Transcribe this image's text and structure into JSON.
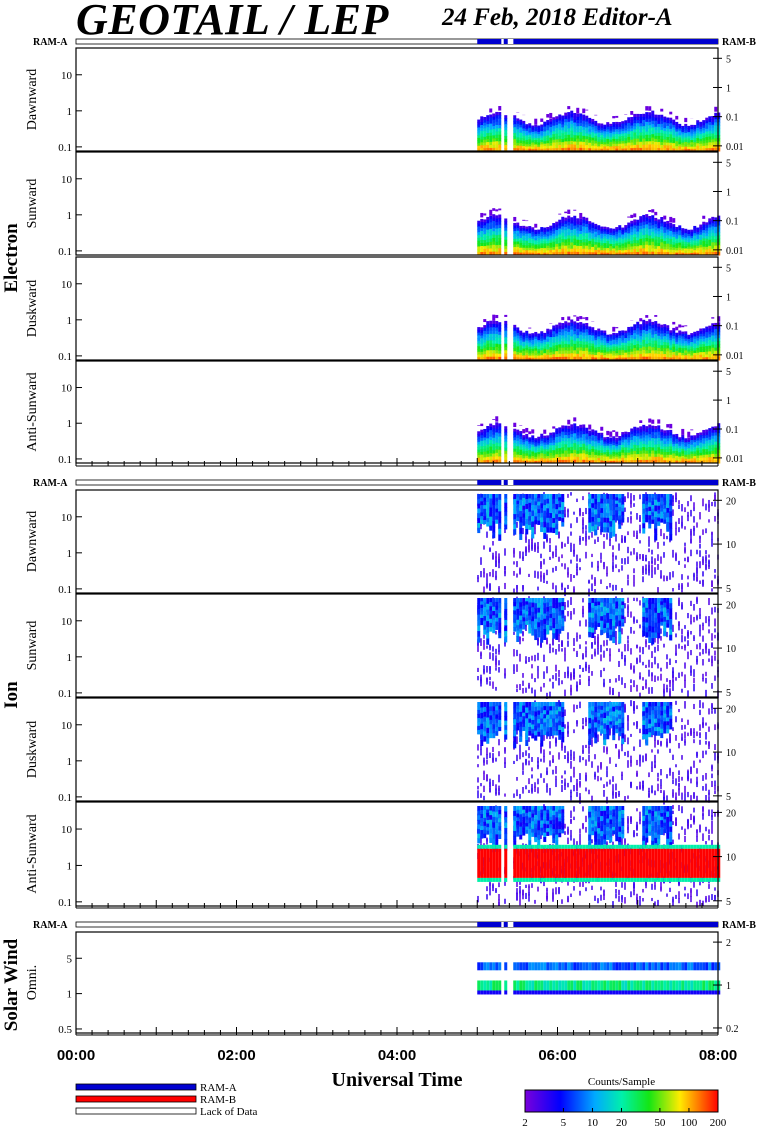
{
  "header": {
    "title": "GEOTAIL / LEP",
    "date_editor": "24 Feb, 2018   Editor-A"
  },
  "colors": {
    "ram_a": "#0000d0",
    "ram_b": "#ff0000",
    "panel_border": "#000000"
  },
  "chart_data": {
    "type": "heatmap",
    "xlabel": "Universal Time",
    "x_ticks": [
      "00:00",
      "02:00",
      "04:00",
      "06:00",
      "08:00"
    ],
    "x_range_hours": [
      0,
      8
    ],
    "data_start_hour": 5.0,
    "data_gap_hours": [
      [
        5.3,
        5.33
      ],
      [
        5.38,
        5.45
      ]
    ],
    "ram_a_bar_start_hour": 5.0,
    "mode_labels": {
      "ram_a": "RAM-A",
      "ram_b": "RAM-B"
    },
    "groups": [
      {
        "name": "Electron",
        "panels": [
          {
            "label": "Dawnward",
            "left_ticks": [
              "10",
              "1",
              "0.1"
            ],
            "right_ticks": [
              "5",
              "1",
              "0.1",
              "0.01"
            ],
            "band": "electron"
          },
          {
            "label": "Sunward",
            "left_ticks": [
              "10",
              "1",
              "0.1"
            ],
            "right_ticks": [
              "5",
              "1",
              "0.1",
              "0.01"
            ],
            "band": "electron"
          },
          {
            "label": "Duskward",
            "left_ticks": [
              "10",
              "1",
              "0.1"
            ],
            "right_ticks": [
              "5",
              "1",
              "0.1",
              "0.01"
            ],
            "band": "electron"
          },
          {
            "label": "Anti-Sunward",
            "left_ticks": [
              "10",
              "1",
              "0.1"
            ],
            "right_ticks": [
              "5",
              "1",
              "0.1",
              "0.01"
            ],
            "band": "electron"
          }
        ]
      },
      {
        "name": "Ion",
        "panels": [
          {
            "label": "Dawnward",
            "left_ticks": [
              "10",
              "1",
              "0.1"
            ],
            "right_ticks": [
              "20",
              "10",
              "5"
            ],
            "band": "ion"
          },
          {
            "label": "Sunward",
            "left_ticks": [
              "10",
              "1",
              "0.1"
            ],
            "right_ticks": [
              "20",
              "10",
              "5"
            ],
            "band": "ion"
          },
          {
            "label": "Duskward",
            "left_ticks": [
              "10",
              "1",
              "0.1"
            ],
            "right_ticks": [
              "20",
              "10",
              "5"
            ],
            "band": "ion"
          },
          {
            "label": "Anti-Sunward",
            "left_ticks": [
              "10",
              "1",
              "0.1"
            ],
            "right_ticks": [
              "20",
              "10",
              "5"
            ],
            "band": "ion_red"
          }
        ]
      },
      {
        "name": "Solar Wind",
        "panels": [
          {
            "label": "Omni.",
            "left_ticks": [
              "5",
              "1",
              "0.5"
            ],
            "right_ticks": [
              "2",
              "1",
              "0.2"
            ],
            "band": "solar"
          }
        ]
      }
    ],
    "legend": [
      {
        "label": "RAM-A",
        "color": "#0000d0"
      },
      {
        "label": "RAM-B",
        "color": "#ff0000"
      },
      {
        "label": "Lack of Data",
        "color": "#ffffff"
      }
    ],
    "colorbar": {
      "title": "Counts/Sample",
      "ticks": [
        "2",
        "5",
        "10",
        "20",
        "50",
        "100",
        "200"
      ],
      "range": [
        2,
        200
      ],
      "scale": "log"
    }
  }
}
